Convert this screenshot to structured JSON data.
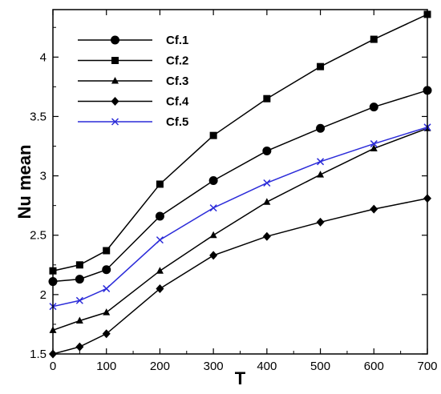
{
  "chart_data": {
    "type": "line",
    "title": "",
    "xlabel": "T",
    "ylabel": "Nu mean",
    "xlim": [
      0,
      700
    ],
    "ylim": [
      1.5,
      4.4
    ],
    "xticks": [
      0,
      100,
      200,
      300,
      400,
      500,
      600,
      700
    ],
    "yticks": [
      1.5,
      2,
      2.5,
      3,
      3.5,
      4
    ],
    "grid": false,
    "legend_position": "top-left",
    "x": [
      0,
      50,
      100,
      200,
      300,
      400,
      500,
      600,
      700
    ],
    "series": [
      {
        "name": "Cf.1",
        "marker": "circle",
        "color": "#000000",
        "values": [
          2.11,
          2.13,
          2.21,
          2.66,
          2.96,
          3.21,
          3.4,
          3.58,
          3.72
        ]
      },
      {
        "name": "Cf.2",
        "marker": "square",
        "color": "#000000",
        "values": [
          2.2,
          2.25,
          2.37,
          2.93,
          3.34,
          3.65,
          3.92,
          4.15,
          4.36
        ]
      },
      {
        "name": "Cf.3",
        "marker": "triangle",
        "color": "#000000",
        "values": [
          1.7,
          1.78,
          1.85,
          2.2,
          2.5,
          2.78,
          3.01,
          3.23,
          3.4
        ]
      },
      {
        "name": "Cf.4",
        "marker": "diamond",
        "color": "#000000",
        "values": [
          1.5,
          1.56,
          1.67,
          2.05,
          2.33,
          2.49,
          2.61,
          2.72,
          2.81
        ]
      },
      {
        "name": "Cf.5",
        "marker": "x",
        "color": "#2b2bd9",
        "values": [
          1.9,
          1.95,
          2.05,
          2.46,
          2.73,
          2.94,
          3.12,
          3.27,
          3.41
        ]
      }
    ]
  }
}
